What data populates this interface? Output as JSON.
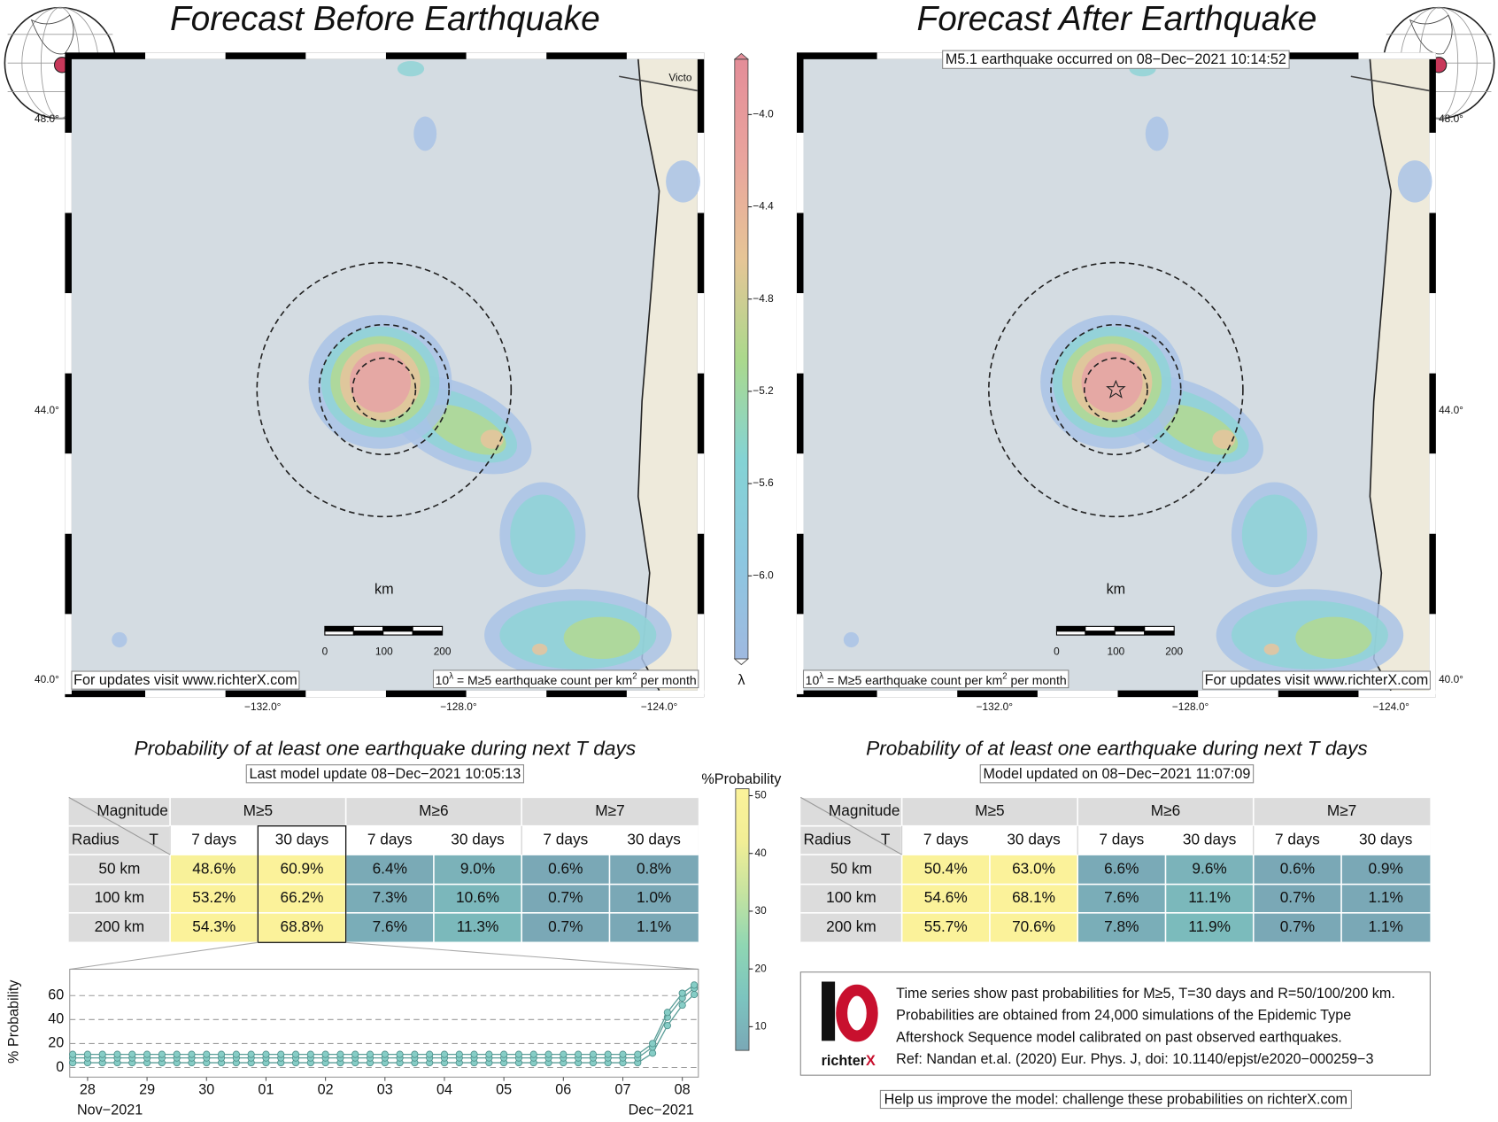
{
  "left_panel": {
    "title": "Forecast Before Earthquake",
    "lat_labels": [
      "48.0°",
      "44.0°",
      "40.0°"
    ],
    "lon_labels": [
      "−132.0°",
      "−128.0°",
      "−124.0°"
    ],
    "place_label": "Victo",
    "scale_unit": "km",
    "scale_labels": [
      "0",
      "100",
      "200"
    ],
    "note_link": "For updates visit www.richterX.com",
    "note_units": [
      "10",
      "λ",
      " = M≥5 earthquake count per km",
      "2",
      " per month"
    ],
    "prob_title": "Probability of at least one earthquake during next T days",
    "update_note": "Last model update 08−Dec−2021 10:05:13",
    "table": {
      "header": [
        "Magnitude",
        "M≥5",
        "M≥6",
        "M≥7"
      ],
      "radius_label": "Radius",
      "t_label": "T",
      "subheader": [
        "7 days",
        "30 days",
        "7 days",
        "30 days",
        "7 days",
        "30 days"
      ],
      "rows": [
        [
          "50 km",
          "48.6%",
          "60.9%",
          "6.4%",
          "9.0%",
          "0.6%",
          "0.8%"
        ],
        [
          "100 km",
          "53.2%",
          "66.2%",
          "7.3%",
          "10.6%",
          "0.7%",
          "1.0%"
        ],
        [
          "200 km",
          "54.3%",
          "68.8%",
          "7.6%",
          "11.3%",
          "0.7%",
          "1.1%"
        ]
      ]
    }
  },
  "right_panel": {
    "title": "Forecast After Earthquake",
    "event_note": "M5.1 earthquake occurred on 08−Dec−2021 10:14:52",
    "lat_labels": [
      "48.0°",
      "44.0°",
      "40.0°"
    ],
    "lon_labels": [
      "−132.0°",
      "−128.0°",
      "−124.0°"
    ],
    "scale_unit": "km",
    "scale_labels": [
      "0",
      "100",
      "200"
    ],
    "note_link": "For updates visit www.richterX.com",
    "note_units": [
      "10",
      "λ",
      " = M≥5 earthquake count per km",
      "2",
      " per month"
    ],
    "prob_title": "Probability of at least one earthquake during next T days",
    "update_note": "Model updated on 08−Dec−2021 11:07:09",
    "table": {
      "header": [
        "Magnitude",
        "M≥5",
        "M≥6",
        "M≥7"
      ],
      "radius_label": "Radius",
      "t_label": "T",
      "subheader": [
        "7 days",
        "30 days",
        "7 days",
        "30 days",
        "7 days",
        "30 days"
      ],
      "rows": [
        [
          "50 km",
          "50.4%",
          "63.0%",
          "6.6%",
          "9.6%",
          "0.6%",
          "0.9%"
        ],
        [
          "100 km",
          "54.6%",
          "68.1%",
          "7.6%",
          "11.1%",
          "0.7%",
          "1.1%"
        ],
        [
          "200 km",
          "55.7%",
          "70.6%",
          "7.8%",
          "11.9%",
          "0.7%",
          "1.1%"
        ]
      ]
    }
  },
  "rate_colorbar": {
    "label": "λ",
    "lim": [
      -6.36,
      -3.76
    ],
    "ticks": [
      {
        "value": -4.0,
        "label": "−4.0"
      },
      {
        "value": -4.4,
        "label": "−4.4"
      },
      {
        "value": -4.8,
        "label": "−4.8"
      },
      {
        "value": -5.2,
        "label": "−5.2"
      },
      {
        "value": -5.6,
        "label": "−5.6"
      },
      {
        "value": -6.0,
        "label": "−6.0"
      }
    ],
    "colors": [
      "#9fb9e0",
      "#8cc7e0",
      "#84d3d4",
      "#abd98c",
      "#e6c596",
      "#e9a49d",
      "#e48d98"
    ]
  },
  "prob_colorbar": {
    "title": "%Probability",
    "lim": [
      5.9,
      51.2
    ],
    "ticks": [
      10,
      20,
      30,
      40,
      50
    ],
    "colors": [
      "#7aa8b6",
      "#7cc4bf",
      "#8fd6b3",
      "#c5e3a0",
      "#f2ee96",
      "#fbf29a"
    ]
  },
  "chart_data": {
    "type": "line",
    "ylabel": "% Probability",
    "period_labels": [
      "Nov−2021",
      "Dec−2021"
    ],
    "x": [
      27.75,
      28,
      28.25,
      28.5,
      28.75,
      29,
      29.25,
      29.5,
      29.75,
      30,
      30.25,
      30.5,
      30.75,
      31,
      31.25,
      31.5,
      31.75,
      32,
      32.25,
      32.5,
      32.75,
      33,
      33.25,
      33.5,
      33.75,
      34,
      34.25,
      34.5,
      34.75,
      35,
      35.25,
      35.5,
      35.75,
      36,
      36.25,
      36.5,
      36.75,
      37,
      37.25,
      37.5,
      37.75,
      38,
      38.2
    ],
    "series": [
      {
        "color": "#86cdc6",
        "values": [
          4,
          4,
          4,
          4,
          4,
          4,
          4,
          4,
          4,
          4,
          4,
          4,
          4,
          4,
          4,
          4,
          4,
          4,
          4,
          4,
          4,
          4,
          4,
          4,
          4,
          4,
          4,
          4,
          4,
          4,
          4,
          4,
          4,
          4,
          4,
          4,
          4,
          4,
          4,
          12,
          35,
          52,
          60.9
        ]
      },
      {
        "color": "#86cdc6",
        "values": [
          8,
          8,
          8,
          8,
          8,
          8,
          8,
          8,
          8,
          8,
          8,
          8,
          8,
          8,
          8,
          8,
          8,
          8,
          8,
          8,
          8,
          8,
          8,
          8,
          8,
          8,
          8,
          8,
          8,
          8,
          8,
          8,
          8,
          8,
          8,
          8,
          8,
          8,
          8,
          17,
          42,
          58,
          66.2
        ]
      },
      {
        "color": "#86cdc6",
        "values": [
          11,
          11,
          11,
          11,
          11,
          11,
          11,
          11,
          11,
          11,
          11,
          11,
          11,
          11,
          11,
          11,
          11,
          11,
          11,
          11,
          11,
          11,
          11,
          11,
          11,
          11,
          11,
          11,
          11,
          11,
          11,
          11,
          11,
          11,
          11,
          11,
          11,
          11,
          11,
          20,
          46,
          62,
          68.8
        ]
      }
    ],
    "xlim": [
      27.7,
      38.27
    ],
    "xticks": [
      28,
      29,
      30,
      {
        "value": 31,
        "label": "01"
      },
      {
        "value": 32,
        "label": "02"
      },
      {
        "value": 33,
        "label": "03"
      },
      {
        "value": 34,
        "label": "04"
      },
      {
        "value": 35,
        "label": "05"
      },
      {
        "value": 36,
        "label": "06"
      },
      {
        "value": 37,
        "label": "07"
      },
      {
        "value": 38,
        "label": "08"
      }
    ],
    "ylim": [
      -8,
      82
    ],
    "yticks": [
      0,
      20,
      40,
      60
    ],
    "grid": true
  },
  "info": {
    "logo_text": [
      "richter",
      "X"
    ],
    "lines": [
      "Time series show past probabilities for M≥5, T=30 days and R=50/100/200 km.",
      "Probabilities are obtained from 24,000 simulations of the Epidemic Type",
      "Aftershock Sequence model calibrated on past observed earthquakes.",
      "Ref: Nandan et.al. (2020) Eur. Phys. J, doi: 10.1140/epjst/e2020−000259−3"
    ],
    "footer": "Help us improve the model: challenge these probabilities on richterX.com"
  }
}
